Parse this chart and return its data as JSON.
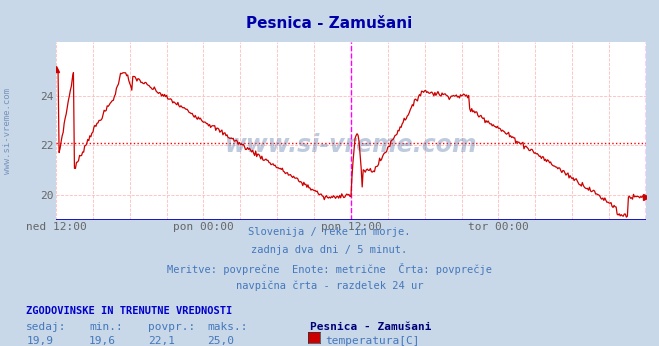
{
  "title": "Pesnica - Zamušani",
  "title_color": "#0000aa",
  "bg_color": "#c8d8e8",
  "plot_bg_color": "#ffffff",
  "line_color": "#cc0000",
  "line_width": 1.0,
  "avg_line_color": "#ff0000",
  "avg_line_value": 22.1,
  "vline_color": "#ff00ff",
  "xlabel_color": "#666666",
  "ylabel_color": "#666666",
  "watermark_color": "#5577aa",
  "ylim": [
    19.0,
    26.2
  ],
  "yticks": [
    20,
    22,
    24
  ],
  "xtick_labels": [
    "ned 12:00",
    "pon 00:00",
    "pon 12:00",
    "tor 00:00"
  ],
  "xtick_positions": [
    0.0,
    0.25,
    0.5,
    0.75
  ],
  "subtitle_lines": [
    "Slovenija / reke in morje.",
    "zadnja dva dni / 5 minut.",
    "Meritve: povprečne  Enote: metrične  Črta: povprečje",
    "navpična črta - razdelek 24 ur"
  ],
  "subtitle_color": "#4477bb",
  "stats_label": "ZGODOVINSKE IN TRENUTNE VREDNOSTI",
  "stats_label_color": "#0000cc",
  "stats_headers": [
    "sedaj:",
    "min.:",
    "povpr.:",
    "maks.:"
  ],
  "stats_values": [
    "19,9",
    "19,6",
    "22,1",
    "25,0"
  ],
  "stats_color": "#4477bb",
  "legend_label": "Pesnica - Zamušani",
  "legend_series": "temperatura[C]",
  "legend_color": "#cc0000",
  "watermark": "www.si-vreme.com",
  "sidewatermark": "www.si-vreme.com",
  "grid_color": "#ffbbbb",
  "bottom_line_color": "#0000bb",
  "n_points": 577
}
